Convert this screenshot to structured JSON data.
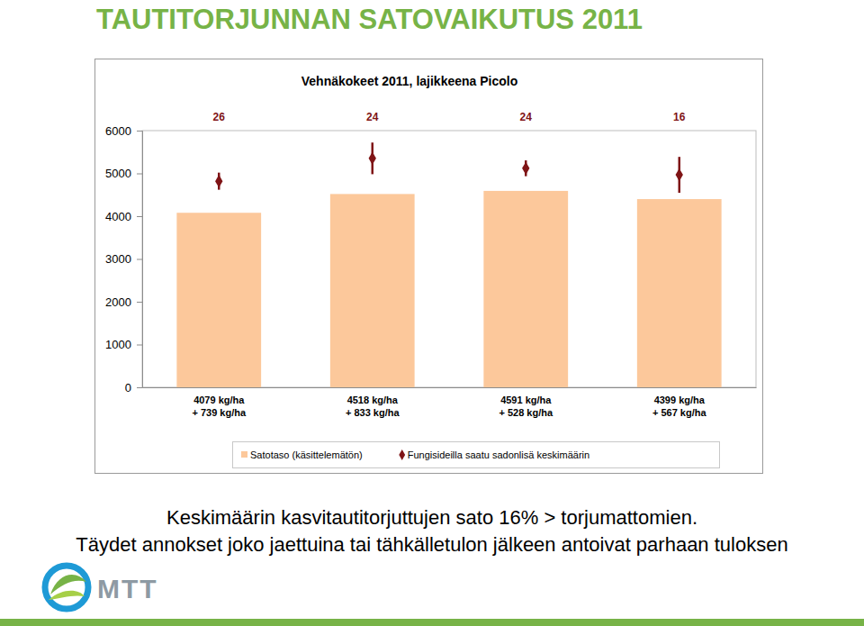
{
  "header": {
    "title": "TAUTITORJUNNAN SATOVAIKUTUS 2011"
  },
  "chart_data": {
    "type": "bar",
    "title": "Vehnäkokeet 2011, lajikkeena Picolo",
    "categories": [
      "4079 kg/ha\n+ 739 kg/ha",
      "4518 kg/ha\n+ 833 kg/ha",
      "4591 kg/ha\n+ 528 kg/ha",
      "4399 kg/ha\n+ 567 kg/ha"
    ],
    "counts": [
      26,
      24,
      24,
      16
    ],
    "series": [
      {
        "name": "Satotaso (käsittelemätön)",
        "type": "bar",
        "color": "#fcc89b",
        "values": [
          4079,
          4518,
          4591,
          4399
        ]
      },
      {
        "name": "Fungisideilla saatu sadonlisä keskimäärin",
        "type": "scatter",
        "marker": "diamond",
        "color": "#7f1416",
        "values": [
          4818,
          5351,
          5119,
          4966
        ],
        "errors": [
          200,
          370,
          185,
          420
        ]
      }
    ],
    "ylim": [
      0,
      6000
    ],
    "yticks": [
      0,
      1000,
      2000,
      3000,
      4000,
      5000,
      6000
    ],
    "grid": false,
    "legend": "bottom"
  },
  "footer": {
    "lines": [
      "Keskimäärin kasvitautitorjuttujen sato 16% > torjumattomien.",
      "Täydet annokset joko jaettuina tai tähkälletulon jälkeen antoivat parhaan tuloksen"
    ]
  },
  "logo": {
    "text": "MTT"
  }
}
